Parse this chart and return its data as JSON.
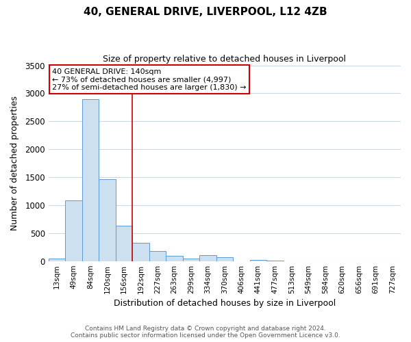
{
  "title": "40, GENERAL DRIVE, LIVERPOOL, L12 4ZB",
  "subtitle": "Size of property relative to detached houses in Liverpool",
  "xlabel": "Distribution of detached houses by size in Liverpool",
  "ylabel": "Number of detached properties",
  "bar_labels": [
    "13sqm",
    "49sqm",
    "84sqm",
    "120sqm",
    "156sqm",
    "192sqm",
    "227sqm",
    "263sqm",
    "299sqm",
    "334sqm",
    "370sqm",
    "406sqm",
    "441sqm",
    "477sqm",
    "513sqm",
    "549sqm",
    "584sqm",
    "620sqm",
    "656sqm",
    "691sqm",
    "727sqm"
  ],
  "bar_values": [
    40,
    1090,
    2900,
    1470,
    630,
    330,
    185,
    95,
    50,
    110,
    75,
    0,
    20,
    5,
    0,
    0,
    0,
    0,
    0,
    0,
    0
  ],
  "bar_color": "#cce0f0",
  "bar_edgecolor": "#5b9bd5",
  "vline_x": 4.5,
  "vline_color": "#cc0000",
  "annotation_title": "40 GENERAL DRIVE: 140sqm",
  "annotation_line1": "← 73% of detached houses are smaller (4,997)",
  "annotation_line2": "27% of semi-detached houses are larger (1,830) →",
  "annotation_box_edgecolor": "#cc0000",
  "ylim": [
    0,
    3500
  ],
  "yticks": [
    0,
    500,
    1000,
    1500,
    2000,
    2500,
    3000,
    3500
  ],
  "footer_line1": "Contains HM Land Registry data © Crown copyright and database right 2024.",
  "footer_line2": "Contains public sector information licensed under the Open Government Licence v3.0.",
  "bg_color": "#ffffff",
  "grid_color": "#c8d8e8"
}
